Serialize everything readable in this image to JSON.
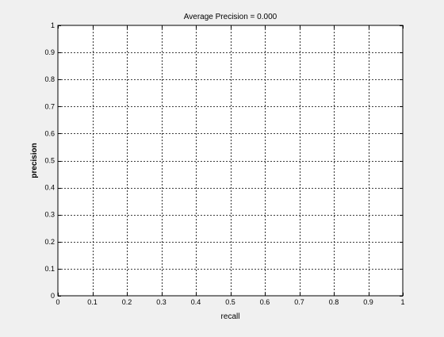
{
  "figure": {
    "background": "#f0f0f0",
    "plot_background": "#ffffff"
  },
  "chart_data": {
    "type": "line",
    "title": "Average Precision = 0.000",
    "xlabel": "recall",
    "ylabel": "precision",
    "xlim": [
      0,
      1
    ],
    "ylim": [
      0,
      1
    ],
    "xticks": [
      0,
      0.1,
      0.2,
      0.3,
      0.4,
      0.5,
      0.6,
      0.7,
      0.8,
      0.9,
      1
    ],
    "yticks": [
      0,
      0.1,
      0.2,
      0.3,
      0.4,
      0.5,
      0.6,
      0.7,
      0.8,
      0.9,
      1
    ],
    "xtick_labels": [
      "0",
      "0.1",
      "0.2",
      "0.3",
      "0.4",
      "0.5",
      "0.6",
      "0.7",
      "0.8",
      "0.9",
      "1"
    ],
    "ytick_labels": [
      "0",
      "0.1",
      "0.2",
      "0.3",
      "0.4",
      "0.5",
      "0.6",
      "0.7",
      "0.8",
      "0.9",
      "1"
    ],
    "grid": true,
    "grid_style": "dotted",
    "series": []
  }
}
